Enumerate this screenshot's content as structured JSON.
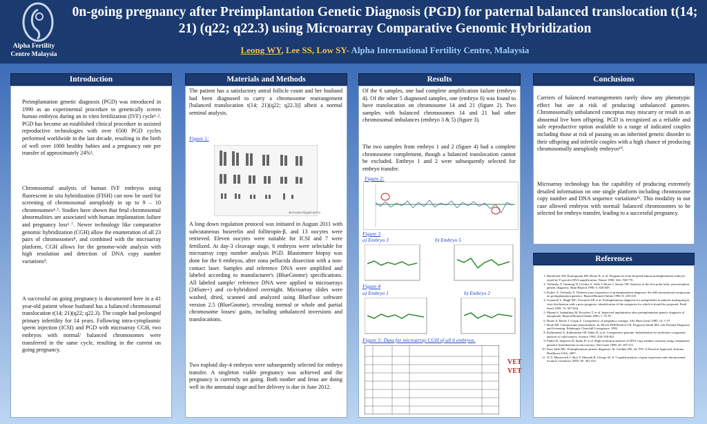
{
  "header": {
    "title": "0n-going pregnancy after Preimplantation Genetic Diagnosis (PGD) for paternal balanced translocation t(14; 21) (q22; q22.3) using Microarray Comparative Genomic Hybridization",
    "authors": [
      "Leong WY",
      ", Lee SS, Low SY- "
    ],
    "affiliation": "Alpha International Fertility Centre, Malaysia",
    "logo_text": "Alpha Fertility Centre Malaysia"
  },
  "introduction": {
    "heading": "Introduction",
    "paragraphs": [
      "Preimplantation genetic diagnosis (PGD) was introduced in 1990 as an experimental procedure to genetically screen human embryos during an in vitro fertilization (IVF) cycle¹˒². PGD has become an established clinical procedure in assisted reproductive technologies with over 6500 PGD cycles performed worldwide in the last decade, resulting in the birth of well over 1000 healthy babies and a pregnancy rate per transfer of approximately 24%³.",
      "Chromosomal analysis of human IVF embryos using fluorescent in situ hybridization (FISH) can now be used for screening of chromosomal aneuploidy in up to 9 – 10 chromosomes⁴˒⁵. Studies have shown that fetal chromosomal abnormalities are associated with human implantation failure and pregnancy loss⁶˒⁷. Newer technology like comparative genomic hybridization (CGH) allow the enumeration of all 23 pairs of chromosomes⁸, and combined with the microarray platform, CGH allows for the genome-wide analysis with high resolution and detection of DNA copy number variations⁹.",
      "A successful on going pregnancy is documented here in a 41 year-old patient whose husband has a balanced chromosomal translocation t(14; 21)(q22; q22.3). The couple had prolonged primary infertility for 14 years. Following intra-cytoplasmic sperm injection (ICSI) and PGD with microarray CGH, two embryos with normal/ balanced chromosomes were transferred in the same cycle, resulting in the current on going pregnancy."
    ]
  },
  "methods": {
    "heading": "Materials and Methods",
    "paragraphs": [
      "The patient has a satisfactory antral follicle count and her husband had been diagnosed to carry a chromosome rearrangement [balanced translocation t(14; 21)(q22; q22.3)] albeit a normal seminal analysis.",
      "A long down regulation protocol was initiated in August 2011 with subcutaneous buserelin and follitropin-β, and 13 oocytes were retrieved. Eleven oocytes were suitable for ICSI and 7 were fertilized. At day-3 cleavage stage, 6 embryos were selectable for microarray copy number analysis PGD. Blastomere biopsy was done for the 6 embryos, after zona pellucida dissection with a non-contact laser. Samples and reference DNA were amplified and labeled according to manufacturer's (BlueGnome) specifications. All labeled sample/ reference DNA were applied to microarrays (24Sure+) and co-hybridized overnight. Microarray slides were washed, dried, scanned and analyzed using BlueFuse software version 2.5 (BlueGnome), revealing normal or whole and partial chromosome losses/ gains, including unbalanced inversions and translocations.",
      "Two euploid day-4 embryos were subsequently selected for embryo transfer. A singleton viable pregnancy was achieved and the pregnancy is currently on going. Both mother and fetus are doing well in the antenatal stage and her delivery is due in June 2012."
    ],
    "figure_label": "Figure 1:",
    "figure_karyotype": "46,XY,t(14;21)(q22;q22.3)"
  },
  "results": {
    "heading": "Results",
    "paragraphs": [
      "Of the 6 samples, one had complete amplification failure (embryo 4). Of the other 5 diagnosed samples, one (embryo 6) was found to have translocation on chromosome 14 and 21 (figure 2). Two samples with balanced chromosomes 14 and 21 had other chromosomal imbalances (embryo 3 & 5) (figure 3).",
      "The two samples from embryo 1 and 2 (figure 4) had a complete chromosome complement, though a balanced translocation cannot be excluded. Embryo 1 and 2 were subsequently selected for embryo transfer."
    ],
    "figures": [
      "Figure 2:",
      "Figure 3",
      "a) Embryo 3",
      "b) Embryo 5",
      "Figure 4",
      "a) Embryo 1",
      "b) Embryo 2",
      "Figure 5: Data for microarray CGH of all 6 embryos."
    ],
    "table_marks": [
      "VET",
      "VET"
    ]
  },
  "conclusions": {
    "heading": "Conclusions",
    "paragraphs": [
      "Carriers of balanced rearrangements rarely show any phenotypic effect but are at risk of producing unbalanced gametes. Chromosomally unbalanced conceptus may miscarry or result in an abnormal live born offspring. PGD is recognized as a reliable and safe reproductive option available to a range of indicated couples including those at risk of passing on an inherited genetic disorder to their offspring and infertile couples with a high chance of producing chromosomally aneuploidy embryos¹⁰.",
      "Microarray technology has the capability of producing extremely detailed information on one single platform including chromosome copy number and DNA sequence variations¹¹. This modality in our case allowed embryos with normal/ balanced chromosomes to be selected for embryo transfer, leading to a successful pregnancy."
    ]
  },
  "references": {
    "heading": "References",
    "items": [
      "Handyside AH, Kontogianni EH, Hardy K, et al. Pregnancies from biopsied human preimplantation embryos sexed by Y-specific DNA amplification. Nature 1990; 344: 768-770.",
      "Verlinsky Y, Ginsberg N, Lifchez A, Valle J, Moise J, Strom CM. Analysis of the first polar body: preconception genetic diagnosis. Hum Reprod 1990; 5: 826-829.",
      "Kuliev A, Verlinsky Y. Thirteen years experience of preimplantation diagnosis: the fifth international symposium on preimplantation genetics. Reprod Biomed Online 1990; 8: 229-235.",
      "Gianaroli L, Magli MC, Ferraretti AP, et al. Preimplantation diagnosis for aneuploidies in patients undergoing in vitro fertilization with a poor prognosis: identification of the categories for which it should be proposed. Fertil Steril 1999; 72: 837-844.",
      "Munné S, Sandalinas M, Escudero T, et al. Improved implantation after preimplantation genetic diagnosis of aneuploidy. Reprod Biomed Online 2003; 7: 91-97.",
      "Bosze A, Bosze J, Gropp A. Cytogenetics of pregnancy wastage. Adv Hum Genet 1985; 14: 1-57.",
      "Hook EB. Chromosome abnormalities. In: Brock DJH Rodeck CH, Ferguson-Smith MA, eds Prenatal Diagnosis and Screening. Edinburgh: Churchill Livingstone, 1992.",
      "Kallioniemi A, Kallioniemi OP, Sudar D, et al. Comparative genomic hybridization for molecular cytogenetic analysis of solid tumors. Science 1992; 258: 818-821.",
      "Pinkel D, Segraves R, Sudar D, et al. High resolution analysis of DNA copy number variation using comparative genomic hybridization to microarrays. Nat Genet 1998; 20: 207-211.",
      "Katz-Jaffe MG. Preimplantation genetic diagnosis. In: Gardner DK, ed. IVF: A Practical Approach. Informa Healthcare USA, 2007.",
      "Yi Y, Mirosevich J, Shyr Y, Matusik R, George AL Jr. Coupled analysis of gene expression and chromosomal location. Genomics 2005; 85: 401-412."
    ]
  }
}
